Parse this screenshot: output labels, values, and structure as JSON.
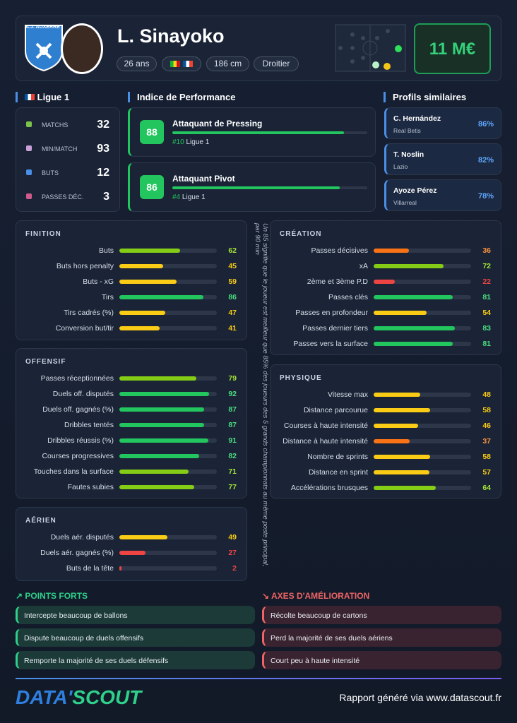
{
  "header": {
    "club": "A.J. AUXERRE",
    "name": "L. Sinayoko",
    "tags": [
      "26 ans",
      "186 cm",
      "Droitier"
    ],
    "market_value": "11 M€"
  },
  "league": {
    "name": "Ligue 1",
    "stats": [
      {
        "label": "MATCHS",
        "value": 32
      },
      {
        "label": "MIN/MATCH",
        "value": 93
      },
      {
        "label": "BUTS",
        "value": 12
      },
      {
        "label": "PASSES DÉC.",
        "value": 3
      }
    ]
  },
  "performance": {
    "title": "Indice de Performance",
    "items": [
      {
        "score": 88,
        "role": "Attaquant de Pressing",
        "rank": "#10",
        "league": "Ligue 1"
      },
      {
        "score": 86,
        "role": "Attaquant Pivot",
        "rank": "#4",
        "league": "Ligue 1"
      }
    ]
  },
  "similar": {
    "title": "Profils similaires",
    "items": [
      {
        "name": "C. Hernández",
        "club": "Real Betis",
        "match": "86%"
      },
      {
        "name": "T. Noslin",
        "club": "Lazio",
        "match": "82%"
      },
      {
        "name": "Ayoze Pérez",
        "club": "Villarreal",
        "match": "78%"
      }
    ]
  },
  "sections": [
    {
      "title": "FINITION",
      "metrics": [
        {
          "label": "Buts",
          "value": 62
        },
        {
          "label": "Buts hors penalty",
          "value": 45
        },
        {
          "label": "Buts - xG",
          "value": 59
        },
        {
          "label": "Tirs",
          "value": 86
        },
        {
          "label": "Tirs cadrés (%)",
          "value": 47
        },
        {
          "label": "Conversion but/tir",
          "value": 41
        }
      ]
    },
    {
      "title": "OFFENSIF",
      "metrics": [
        {
          "label": "Passes réceptionnées",
          "value": 79
        },
        {
          "label": "Duels off. disputés",
          "value": 92
        },
        {
          "label": "Duels off. gagnés (%)",
          "value": 87
        },
        {
          "label": "Dribbles tentés",
          "value": 87
        },
        {
          "label": "Dribbles réussis (%)",
          "value": 91
        },
        {
          "label": "Courses progressives",
          "value": 82
        },
        {
          "label": "Touches dans la surface",
          "value": 71
        },
        {
          "label": "Fautes subies",
          "value": 77
        }
      ]
    },
    {
      "title": "AÉRIEN",
      "metrics": [
        {
          "label": "Duels aér. disputés",
          "value": 49
        },
        {
          "label": "Duels aér. gagnés (%)",
          "value": 27
        },
        {
          "label": "Buts de la tête",
          "value": 2
        }
      ]
    },
    {
      "title": "CRÉATION",
      "metrics": [
        {
          "label": "Passes décisives",
          "value": 36
        },
        {
          "label": "xA",
          "value": 72
        },
        {
          "label": "2ème et 3ème P.D",
          "value": 22
        },
        {
          "label": "Passes clés",
          "value": 81
        },
        {
          "label": "Passes en profondeur",
          "value": 54
        },
        {
          "label": "Passes dernier tiers",
          "value": 83
        },
        {
          "label": "Passes vers la surface",
          "value": 81
        }
      ]
    },
    {
      "title": "PHYSIQUE",
      "metrics": [
        {
          "label": "Vitesse max",
          "value": 48
        },
        {
          "label": "Distance parcourue",
          "value": 58
        },
        {
          "label": "Courses à haute intensité",
          "value": 46
        },
        {
          "label": "Distance à haute intensité",
          "value": 37
        },
        {
          "label": "Nombre de sprints",
          "value": 58
        },
        {
          "label": "Distance en sprint",
          "value": 57
        },
        {
          "label": "Accélérations brusques",
          "value": 64
        }
      ]
    }
  ],
  "note": "Un 85 signifie que le joueur est meilleur que 85% des joueurs des 5 grands championnats au même poste principal, par 90 min",
  "strengths": {
    "title": "POINTS FORTS",
    "items": [
      "Intercepte beaucoup de ballons",
      "Dispute beaucoup de duels offensifs",
      "Remporte la majorité de ses duels défensifs"
    ]
  },
  "weaknesses": {
    "title": "AXES D'AMÉLIORATION",
    "items": [
      "Récolte beaucoup de cartons",
      "Perd la majorité de ses duels aériens",
      "Court peu à haute intensité"
    ]
  },
  "footer": {
    "logo_a": "DATA'",
    "logo_b": "SCOUT",
    "text": "Rapport généré via www.datascout.fr"
  }
}
